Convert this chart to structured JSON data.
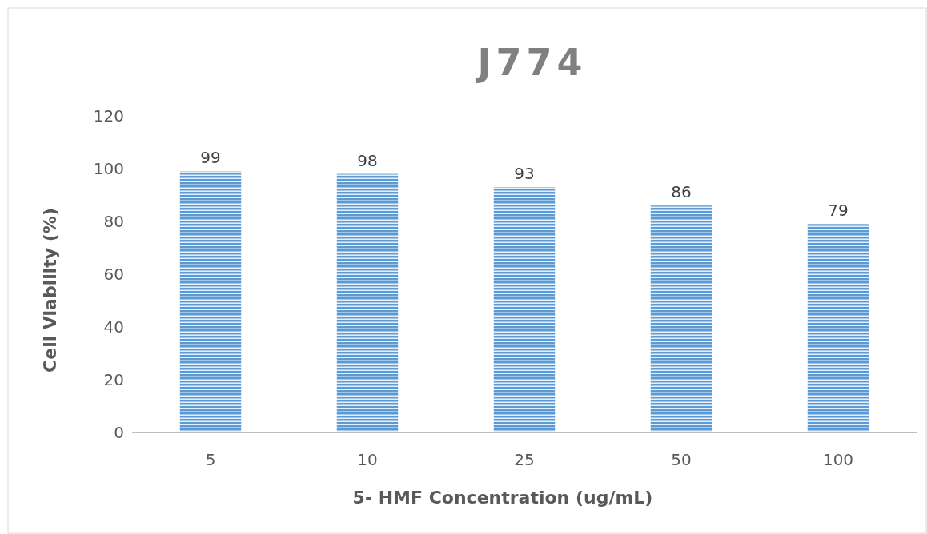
{
  "chart_data": {
    "type": "bar",
    "title": "J774",
    "xlabel": "5- HMF Concentration (ug/mL)",
    "ylabel": "Cell Viability (%)",
    "categories": [
      "5",
      "10",
      "25",
      "50",
      "100"
    ],
    "values": [
      99,
      98,
      93,
      86,
      79
    ],
    "color": "#5b9bd5",
    "ylim": [
      0,
      120
    ],
    "yticks": [
      0,
      20,
      40,
      60,
      80,
      100,
      120
    ],
    "grid": false,
    "data_labels": true
  }
}
